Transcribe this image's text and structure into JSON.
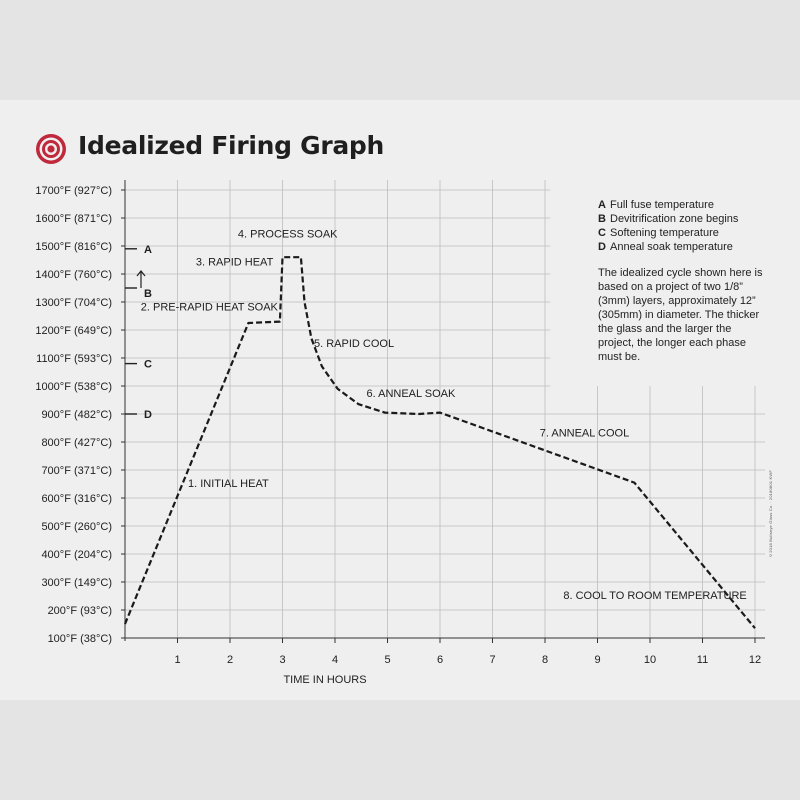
{
  "header": {
    "title": "Idealized Firing Graph"
  },
  "legend": {
    "items": [
      {
        "key": "A",
        "text": "Full fuse temperature"
      },
      {
        "key": "B",
        "text": "Devitrification zone begins"
      },
      {
        "key": "C",
        "text": "Softening temperature"
      },
      {
        "key": "D",
        "text": "Anneal soak temperature"
      }
    ],
    "note": "The idealized cycle shown here is based on a project of two 1/8” (3mm) layers, approximately 12” (305mm) in diameter. The thicker the glass and the larger the project, the longer each phase must be."
  },
  "credit": "©2018 Bullseye Glass Co. · 20180801 KWF",
  "colors": {
    "logo_red": "#c0283c",
    "line": "#1a1a1a",
    "grid": "#bdbdbd"
  },
  "chart_data": {
    "type": "line",
    "title": "Idealized Firing Graph",
    "xlabel": "TIME IN HOURS",
    "ylabel": "",
    "xlim": [
      0,
      12
    ],
    "ylim": [
      100,
      1700
    ],
    "grid": true,
    "line_style": "dashed",
    "x_ticks": [
      "1",
      "2",
      "3",
      "4",
      "5",
      "6",
      "7",
      "8",
      "9",
      "10",
      "11",
      "12"
    ],
    "y_ticks": [
      {
        "value": 100,
        "label": "100°F (38°C)"
      },
      {
        "value": 200,
        "label": "200°F (93°C)"
      },
      {
        "value": 300,
        "label": "300°F (149°C)"
      },
      {
        "value": 400,
        "label": "400°F (204°C)"
      },
      {
        "value": 500,
        "label": "500°F (260°C)"
      },
      {
        "value": 600,
        "label": "600°F (316°C)"
      },
      {
        "value": 700,
        "label": "700°F (371°C)"
      },
      {
        "value": 800,
        "label": "800°F (427°C)"
      },
      {
        "value": 900,
        "label": "900°F (482°C)"
      },
      {
        "value": 1000,
        "label": "1000°F (538°C)"
      },
      {
        "value": 1100,
        "label": "1100°F (593°C)"
      },
      {
        "value": 1200,
        "label": "1200°F (649°C)"
      },
      {
        "value": 1300,
        "label": "1300°F (704°C)"
      },
      {
        "value": 1400,
        "label": "1400°F (760°C)"
      },
      {
        "value": 1500,
        "label": "1500°F (816°C)"
      },
      {
        "value": 1600,
        "label": "1600°F (871°C)"
      },
      {
        "value": 1700,
        "label": "1700°F (927°C)"
      }
    ],
    "series": [
      {
        "points": [
          [
            0,
            150
          ],
          [
            2.35,
            1225
          ],
          [
            2.95,
            1230
          ],
          [
            3.0,
            1460
          ],
          [
            3.35,
            1460
          ],
          [
            3.42,
            1300
          ],
          [
            3.55,
            1170
          ],
          [
            3.75,
            1070
          ],
          [
            4.05,
            990
          ],
          [
            4.45,
            935
          ],
          [
            4.95,
            905
          ],
          [
            5.6,
            900
          ],
          [
            6.0,
            905
          ],
          [
            9.7,
            655
          ],
          [
            12.0,
            135
          ]
        ]
      }
    ],
    "phase_labels": [
      {
        "text": "1. INITIAL HEAT",
        "x": 1.2,
        "y": 640
      },
      {
        "text": "2. PRE-RAPID HEAT SOAK",
        "x": 0.3,
        "y": 1270
      },
      {
        "text": "3. RAPID HEAT",
        "x": 1.35,
        "y": 1430
      },
      {
        "text": "4. PROCESS SOAK",
        "x": 2.15,
        "y": 1530
      },
      {
        "text": "5. RAPID COOL",
        "x": 3.6,
        "y": 1140
      },
      {
        "text": "6. ANNEAL SOAK",
        "x": 4.6,
        "y": 960
      },
      {
        "text": "7. ANNEAL COOL",
        "x": 7.9,
        "y": 820
      },
      {
        "text": "8. COOL TO ROOM TEMPERATURE",
        "x": 8.35,
        "y": 240
      }
    ],
    "markers": [
      {
        "key": "A",
        "value": 1490
      },
      {
        "key": "B",
        "value": 1350,
        "arrow": "up"
      },
      {
        "key": "C",
        "value": 1080
      },
      {
        "key": "D",
        "value": 900
      }
    ]
  }
}
